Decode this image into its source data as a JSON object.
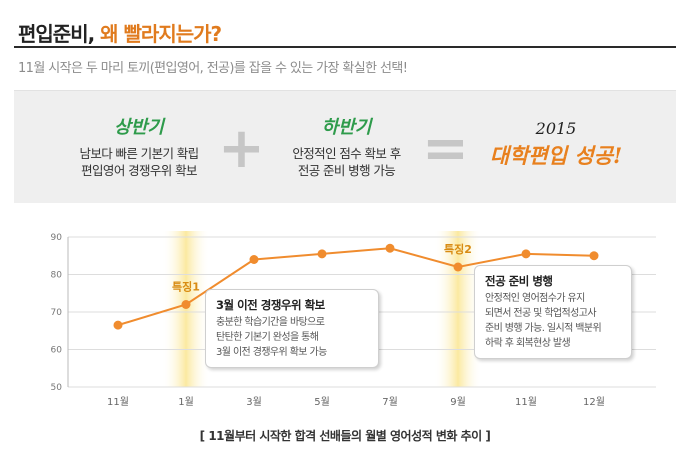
{
  "header": {
    "title_dark": "편입준비,",
    "title_accent": "왜 빨라지는가?",
    "subtitle": "11월 시작은 두 마리 토끼(편입영어, 전공)를 잡을 수 있는 가장 확실한 선택!"
  },
  "banner": {
    "first_half": {
      "title": "상반기",
      "line1": "남보다 빠른 기본기 확립",
      "line2": "편입영어 경쟁우위 확보"
    },
    "plus": "+",
    "second_half": {
      "title": "하반기",
      "line1": "안정적인 점수 확보 후",
      "line2": "전공 준비 병행 가능"
    },
    "equals": "=",
    "result": {
      "year": "2015",
      "text": "대학편입 성공!"
    }
  },
  "colors": {
    "accent": "#e07b1e",
    "line": "#f08c2e",
    "green": "#2e9b4b",
    "highlight": "#fbe9a0"
  },
  "chart_data": {
    "type": "line",
    "categories": [
      "11월",
      "1월",
      "3월",
      "5월",
      "7월",
      "9월",
      "11월",
      "12월"
    ],
    "values": [
      66.5,
      72,
      84,
      85.5,
      87,
      82,
      85.5,
      85
    ],
    "yticks": [
      50,
      60,
      70,
      80,
      90
    ],
    "ylim": [
      50,
      90
    ],
    "highlights": [
      {
        "index": 1,
        "label": "특징1"
      },
      {
        "index": 5,
        "label": "특징2"
      }
    ],
    "caption": "[ 11월부터 시작한 합격 선배들의 월별 영어성적 변화 추이 ]"
  },
  "callouts": [
    {
      "title": "3월 이전 경쟁우위 확보",
      "body": "충분한 학습기간을 바탕으로\n탄탄한 기본기 완성을 통해\n3월 이전 경쟁우위 확보 가능"
    },
    {
      "title": "전공 준비 병행",
      "body": "안정적인 영어점수가 유지\n되면서 전공 및 학업적성고사\n준비 병행 가능. 일시적 백분위\n하락 후 회복현상 발생"
    }
  ]
}
